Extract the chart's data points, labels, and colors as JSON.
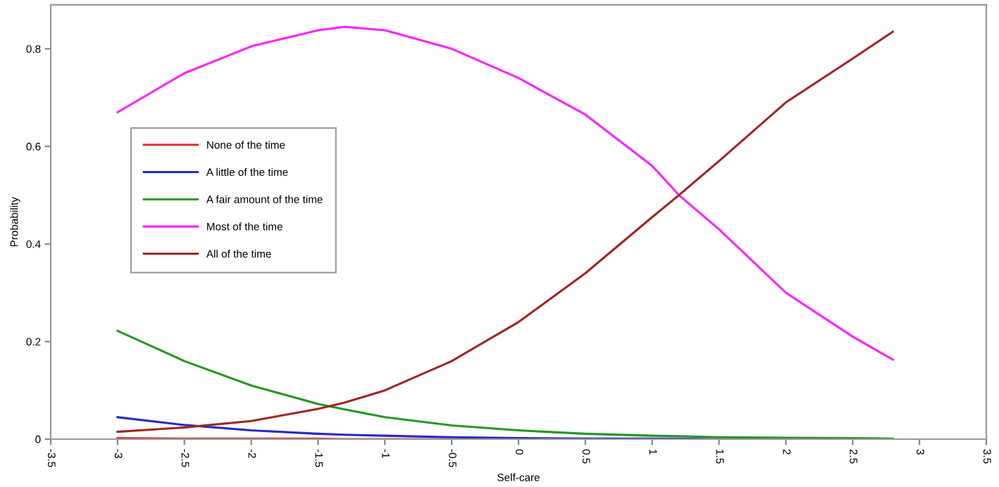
{
  "chart_data": {
    "type": "line",
    "xlabel": "Self-care",
    "ylabel": "Probability",
    "x": [
      -3,
      -2.5,
      -2,
      -1.5,
      -1.3,
      -1,
      -0.5,
      0,
      0.5,
      1,
      1.2,
      1.5,
      2,
      2.5,
      2.8
    ],
    "series": [
      {
        "name": "None of the time",
        "color": "#e03030",
        "values": [
          0.002,
          0.001,
          0.001,
          0.001,
          0.0,
          0.0,
          0.0,
          null,
          null,
          null,
          null,
          null,
          null,
          null,
          null
        ]
      },
      {
        "name": "A little of the time",
        "color": "#2828c8",
        "values": [
          0.045,
          0.029,
          0.018,
          0.011,
          0.009,
          0.007,
          0.004,
          0.002,
          0.001,
          0.001,
          0.001,
          0.0,
          0.0,
          null,
          null
        ]
      },
      {
        "name": "A fair amount of the time",
        "color": "#229922",
        "values": [
          0.222,
          0.16,
          0.11,
          0.072,
          0.061,
          0.045,
          0.028,
          0.018,
          0.011,
          0.007,
          0.006,
          0.004,
          0.003,
          0.002,
          0.001
        ]
      },
      {
        "name": "Most of the time",
        "color": "#ff22ff",
        "values": [
          0.67,
          0.75,
          0.805,
          0.838,
          0.845,
          0.838,
          0.8,
          0.74,
          0.665,
          0.56,
          0.5,
          0.43,
          0.3,
          0.21,
          0.163
        ]
      },
      {
        "name": "All of the time",
        "color": "#a02525",
        "values": [
          0.015,
          0.024,
          0.037,
          0.062,
          0.075,
          0.1,
          0.16,
          0.24,
          0.34,
          0.455,
          0.5,
          0.57,
          0.69,
          0.78,
          0.835
        ]
      }
    ],
    "xlim": [
      -3.5,
      3.5
    ],
    "xticks": [
      -3.5,
      -3,
      -2.5,
      -2,
      -1.5,
      -1,
      -0.5,
      0,
      0.5,
      1,
      1.5,
      2,
      2.5,
      3,
      3.5
    ],
    "ylim": [
      0,
      0.89
    ],
    "yticks": [
      0,
      0.2,
      0.4,
      0.6,
      0.8
    ],
    "grid": false,
    "legend": "center left",
    "marker": "none",
    "line_style": "solid"
  }
}
